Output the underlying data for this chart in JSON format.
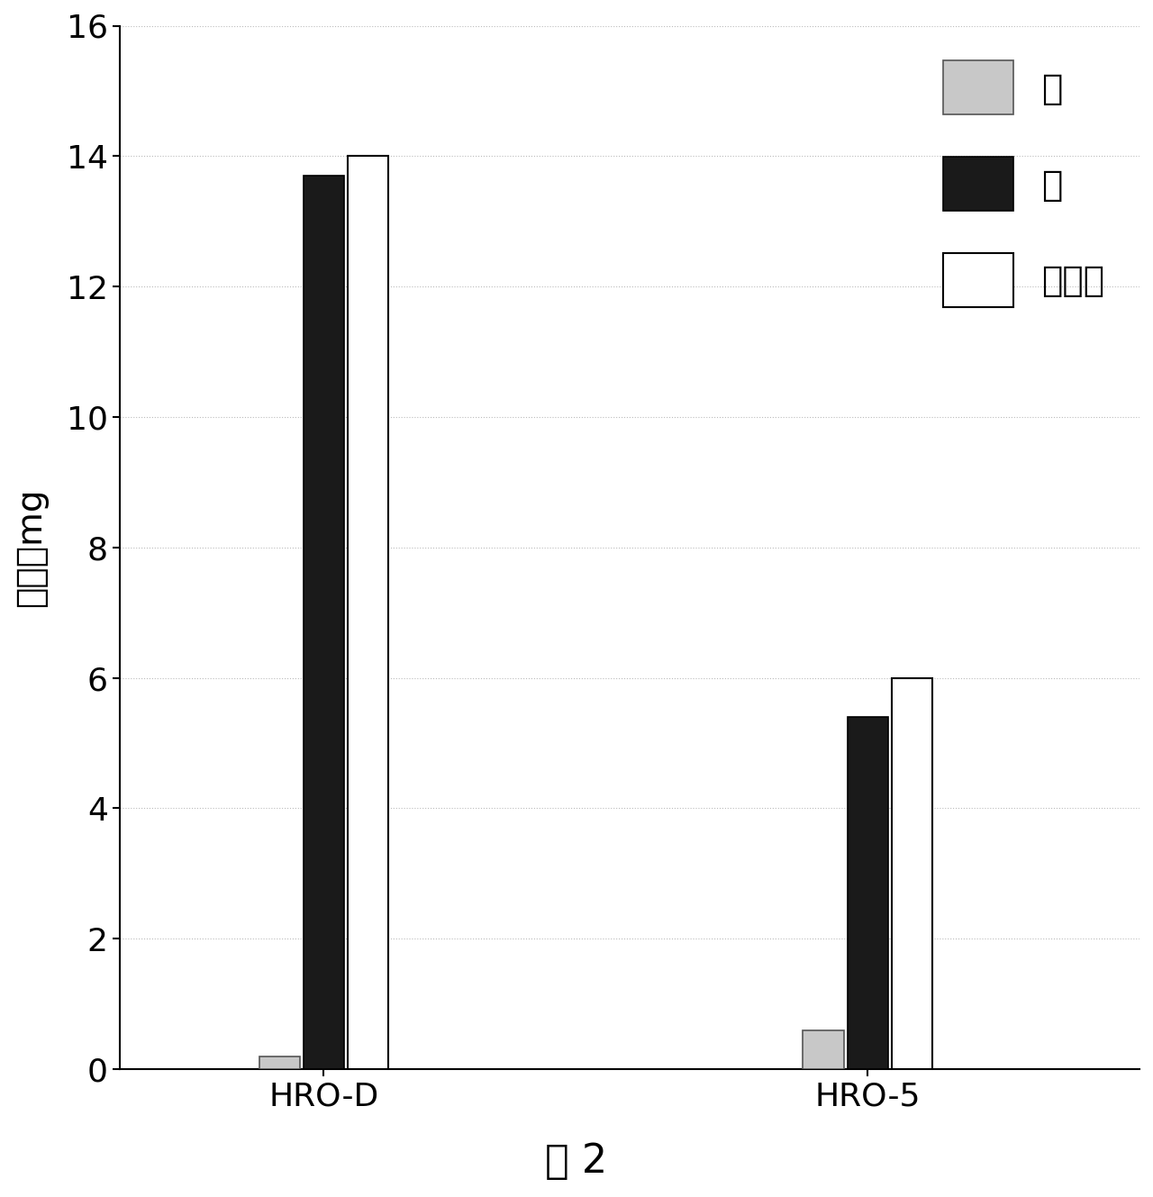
{
  "groups": [
    "HRO-D",
    "HRO-5"
  ],
  "series": [
    {
      "label": "销",
      "color": "#c8c8c8",
      "edgecolor": "#555555",
      "linewidth": 1.2,
      "values": [
        0.2,
        0.6
      ]
    },
    {
      "label": "盘",
      "color": "#1a1a1a",
      "edgecolor": "#000000",
      "linewidth": 1.2,
      "values": [
        13.7,
        5.4
      ]
    },
    {
      "label": "销＋盘",
      "color": "#ffffff",
      "edgecolor": "#000000",
      "linewidth": 1.5,
      "values": [
        14.0,
        6.0
      ]
    }
  ],
  "ylim": [
    0,
    16
  ],
  "yticks": [
    0,
    2,
    4,
    6,
    8,
    10,
    12,
    14,
    16
  ],
  "ylabel": "失重／mg",
  "caption": "图 2",
  "bar_width": 0.12,
  "group_centers": [
    1.0,
    2.6
  ],
  "group_offsets": [
    -0.13,
    0.0,
    0.13
  ],
  "xlim": [
    0.4,
    3.4
  ],
  "figsize": [
    12.8,
    13.29
  ],
  "dpi": 100,
  "background_color": "#ffffff",
  "legend_fontsize": 28,
  "tick_fontsize": 26,
  "label_fontsize": 28,
  "caption_fontsize": 32,
  "grid_color": "#bbbbbb",
  "grid_linestyle": ":",
  "grid_linewidth": 0.8,
  "spine_linewidth": 1.5
}
